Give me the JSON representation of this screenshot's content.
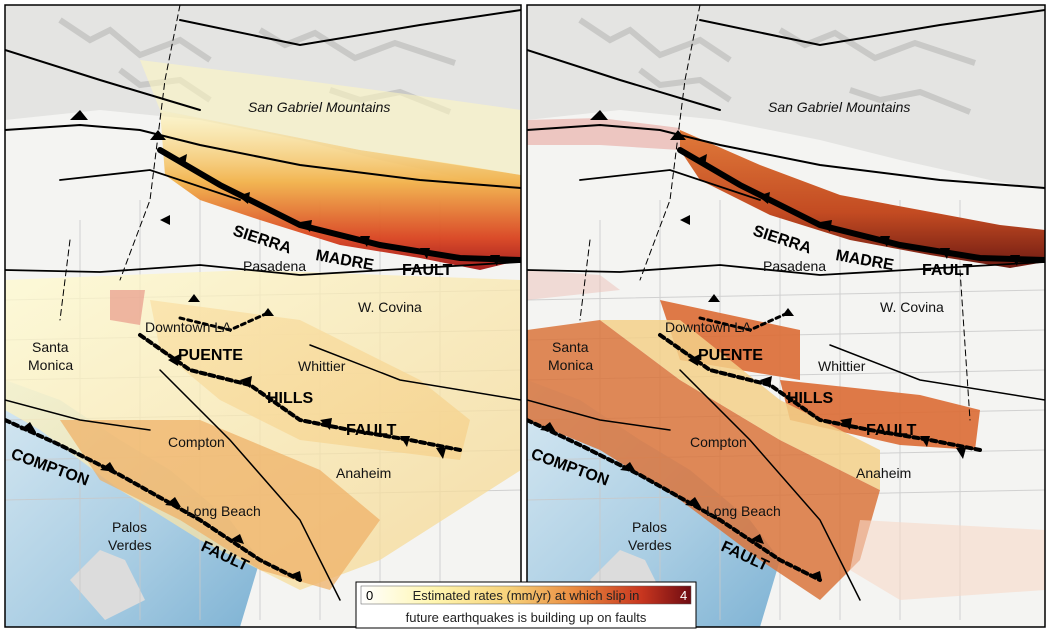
{
  "map": {
    "panels": [
      {
        "id": "left",
        "labels": {
          "mountains": "San Gabriel Mountains",
          "pasadena": "Pasadena",
          "w_covina": "W. Covina",
          "downtown": "Downtown LA",
          "santa": "Santa",
          "monica": "Monica",
          "whittier": "Whittier",
          "compton": "Compton",
          "anaheim": "Anaheim",
          "long_beach": "Long Beach",
          "palos": "Palos",
          "verdes": "Verdes"
        },
        "fault_labels": {
          "sierra": "SIERRA",
          "madre": "MADRE",
          "fault_sm": "FAULT",
          "puente": "PUENTE",
          "hills": "HILLS",
          "fault_ph": "FAULT",
          "compton_f": "COMPTON",
          "fault_c": "FAULT"
        }
      },
      {
        "id": "right",
        "labels": {
          "mountains": "San Gabriel Mountains",
          "pasadena": "Pasadena",
          "w_covina": "W. Covina",
          "downtown": "Downtown LA",
          "santa": "Santa",
          "monica": "Monica",
          "whittier": "Whittier",
          "compton": "Compton",
          "anaheim": "Anaheim",
          "long_beach": "Long Beach",
          "palos": "Palos",
          "verdes": "Verdes"
        },
        "fault_labels": {
          "sierra": "SIERRA",
          "madre": "MADRE",
          "fault_sm": "FAULT",
          "puente": "PUENTE",
          "hills": "HILLS",
          "fault_ph": "FAULT",
          "compton_f": "COMPTON",
          "fault_c": "FAULT"
        }
      }
    ],
    "legend": {
      "min": "0",
      "max": "4",
      "line1": "Estimated rates (mm/yr) at which slip in",
      "line2": "future earthquakes is building up on faults",
      "colors": [
        "#ffffff",
        "#fff6b0",
        "#f7d27a",
        "#e98a3f",
        "#c8361f",
        "#6e0b12"
      ]
    }
  }
}
